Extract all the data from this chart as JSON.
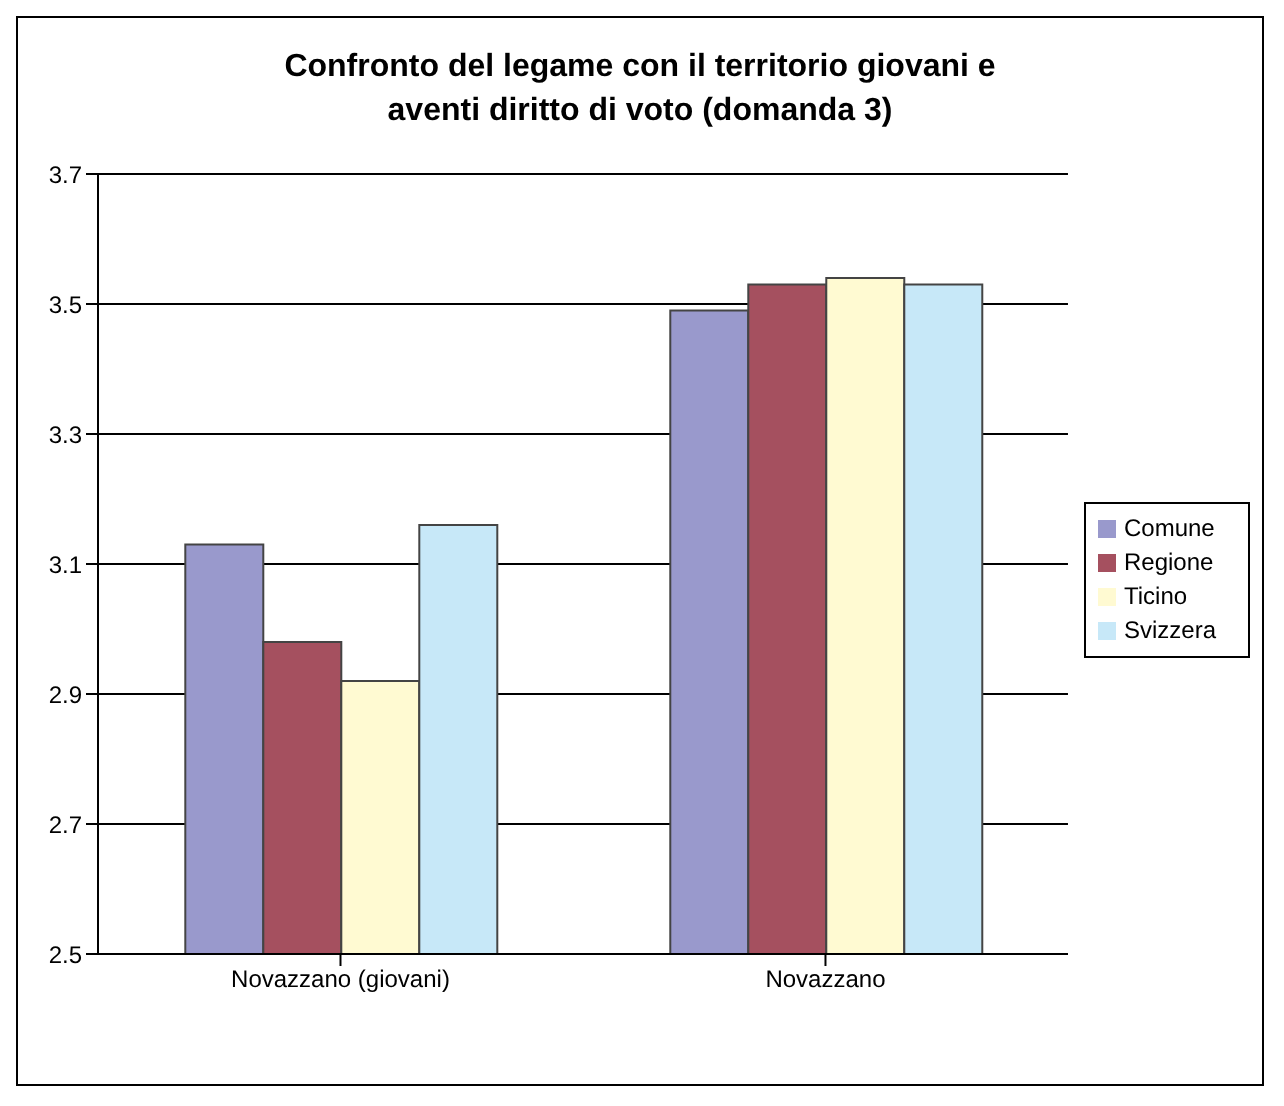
{
  "chart_data": {
    "type": "bar",
    "title": "Confronto del legame con il territorio giovani e aventi diritto di voto (domanda 3)",
    "categories": [
      "Novazzano (giovani)",
      "Novazzano"
    ],
    "series": [
      {
        "name": "Comune",
        "color": "#9999cc",
        "values": [
          3.13,
          3.49
        ]
      },
      {
        "name": "Regione",
        "color": "#a5505f",
        "values": [
          2.98,
          3.53
        ]
      },
      {
        "name": "Ticino",
        "color": "#fffad2",
        "values": [
          2.92,
          3.54
        ]
      },
      {
        "name": "Svizzera",
        "color": "#c7e8f8",
        "values": [
          3.16,
          3.53
        ]
      }
    ],
    "ylim": [
      2.5,
      3.7
    ],
    "yticks": [
      2.5,
      2.7,
      2.9,
      3.1,
      3.3,
      3.5,
      3.7
    ],
    "grid": "y",
    "legend": "right"
  }
}
